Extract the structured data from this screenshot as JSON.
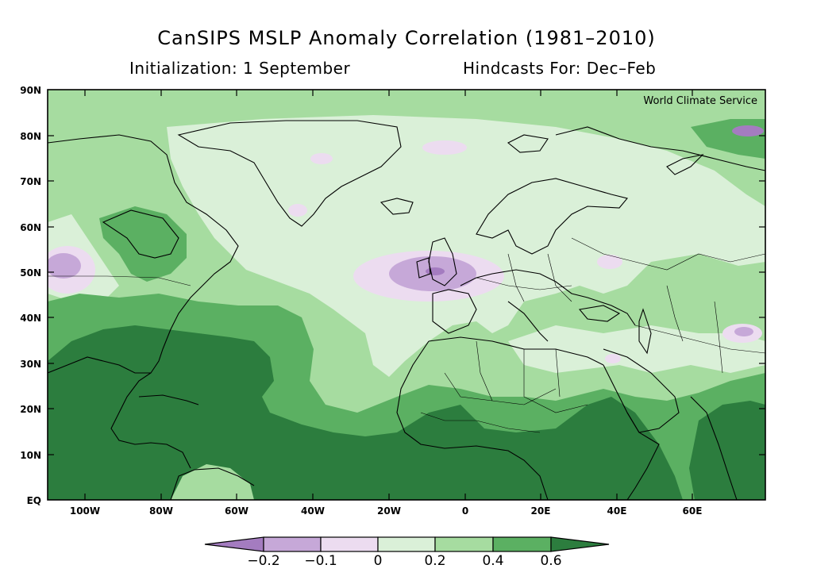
{
  "header": {
    "title": "CanSIPS MSLP Anomaly Correlation (1981–2010)",
    "init": "Initialization: 1 September",
    "hindcast": "Hindcasts For: Dec–Feb"
  },
  "map": {
    "watermark": "World Climate Service",
    "lat_labels": [
      "90N",
      "80N",
      "70N",
      "60N",
      "50N",
      "40N",
      "30N",
      "20N",
      "10N",
      "EQ"
    ],
    "lon_labels": [
      "100W",
      "80W",
      "60W",
      "40W",
      "20W",
      "0",
      "20E",
      "40E",
      "60E"
    ]
  },
  "colorbar": {
    "labels": [
      "−0.2",
      "−0.1",
      "0",
      "0.2",
      "0.4",
      "0.6"
    ],
    "colors": {
      "lt_-0.2": "#a47cc0",
      "-0.2_-0.1": "#c6a8d8",
      "-0.1_0": "#ecdcf0",
      "0_0.2": "#daf0d8",
      "0.2_0.4": "#a6dca0",
      "0.4_0.6": "#5bb062",
      "gt_0.6": "#2c7d3e"
    }
  }
}
